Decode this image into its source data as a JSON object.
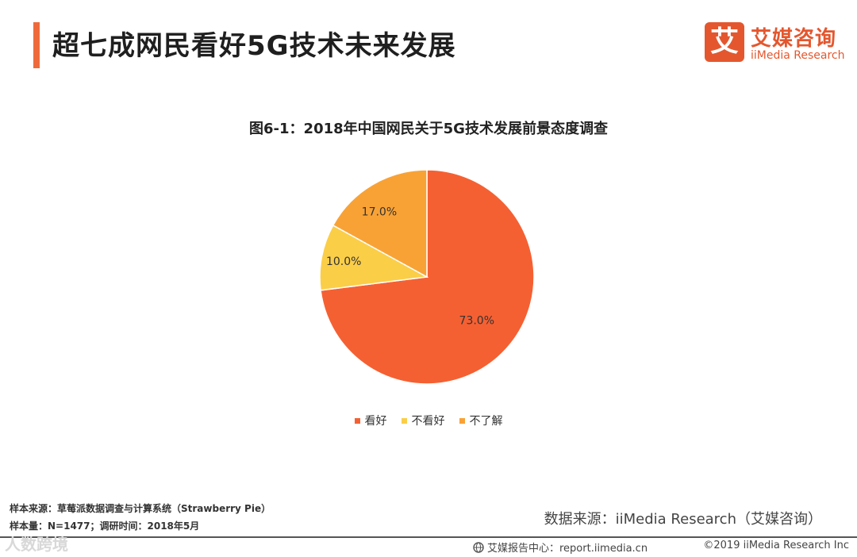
{
  "header": {
    "title": "超七成网民看好5G技术未来发展",
    "logo_mark": "艾",
    "logo_cn": "艾媒咨询",
    "logo_en": "iiMedia Research"
  },
  "chart_data": {
    "type": "pie",
    "title": "图6-1：2018年中国网民关于5G技术发展前景态度调查",
    "categories": [
      "看好",
      "不看好",
      "不了解"
    ],
    "values": [
      73.0,
      10.0,
      17.0
    ],
    "value_labels": [
      "73.0%",
      "10.0%",
      "17.0%"
    ],
    "colors": [
      "#f56032",
      "#fbce48",
      "#f8a236"
    ],
    "legend": "bottom"
  },
  "footer": {
    "sample_source": "样本来源：草莓派数据调查与计算系统（Strawberry  Pie）",
    "sample_size": "样本量：N=1477；调研时间：2018年5月",
    "data_source": "数据来源：iiMedia Research（艾媒咨询）",
    "report_center": "艾媒报告中心：report.iimedia.cn",
    "copyright": "©2019  iiMedia Research  Inc",
    "watermark": "人数跨境"
  }
}
